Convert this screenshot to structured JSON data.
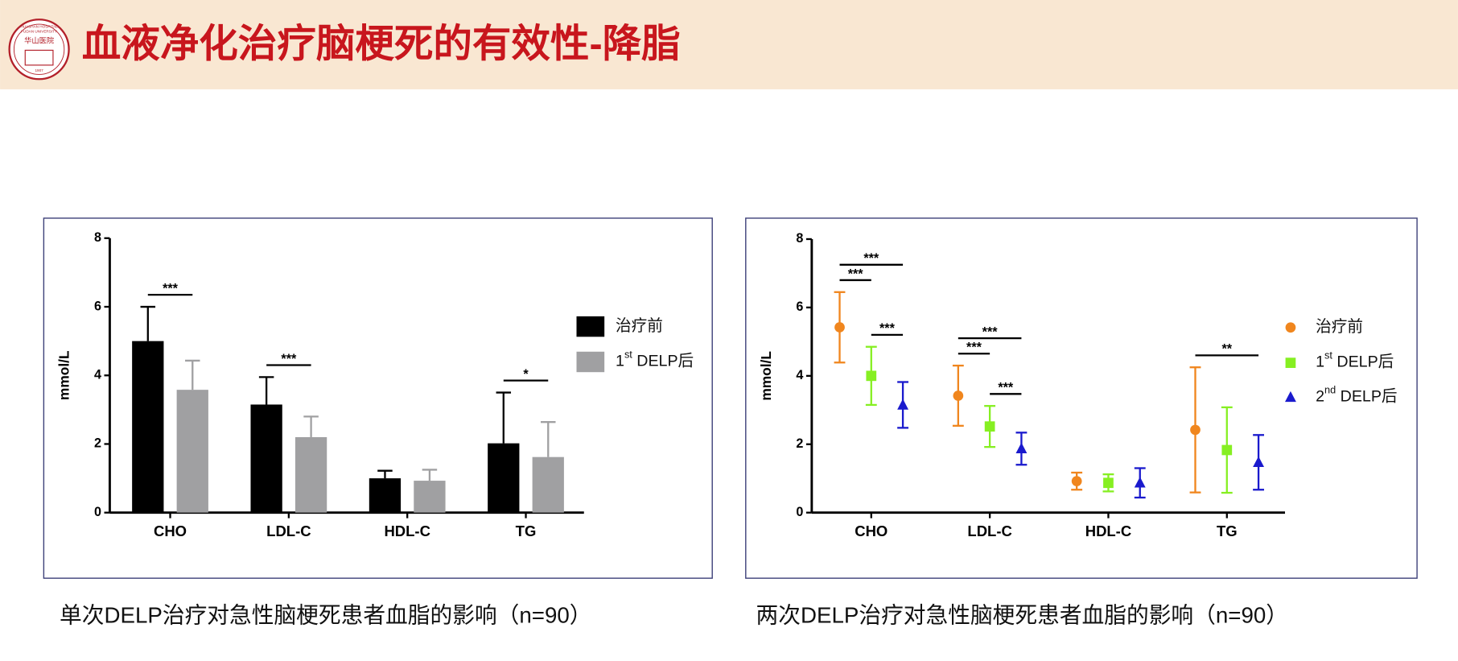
{
  "header": {
    "title": "血液净化治疗脑梗死的有效性-降脂",
    "logo": {
      "name_en": "HUASHAN HOSPITAL",
      "university": "FUDAN UNIVERSITY",
      "name_cn": "华山医院",
      "year": "1907"
    }
  },
  "chart_data": [
    {
      "type": "bar",
      "caption": "单次DELP治疗对急性脑梗死患者血脂的影响（n=90）",
      "ylabel": "mmol/L",
      "categories": [
        "CHO",
        "LDL-C",
        "HDL-C",
        "TG"
      ],
      "ylim": [
        0,
        8
      ],
      "yticks": [
        0,
        2,
        4,
        6,
        8
      ],
      "legend": "right",
      "series": [
        {
          "name": "治疗前",
          "color": "#000000",
          "values": [
            5.0,
            3.15,
            1.0,
            2.02
          ],
          "errors": [
            1.0,
            0.8,
            0.22,
            1.48
          ]
        },
        {
          "name": "1st DELP后",
          "color": "#a0a0a2",
          "values": [
            3.58,
            2.2,
            0.93,
            1.62
          ],
          "errors": [
            0.85,
            0.6,
            0.32,
            1.02
          ]
        }
      ],
      "annotations": [
        {
          "text": "***",
          "category": "CHO",
          "between": [
            "治疗前",
            "1st DELP后"
          ]
        },
        {
          "text": "***",
          "category": "LDL-C",
          "between": [
            "治疗前",
            "1st DELP后"
          ]
        },
        {
          "text": "*",
          "category": "TG",
          "between": [
            "治疗前",
            "1st DELP后"
          ]
        }
      ]
    },
    {
      "type": "errorbar",
      "caption": "两次DELP治疗对急性脑梗死患者血脂的影响（n=90）",
      "ylabel": "mmol/L",
      "categories": [
        "CHO",
        "LDL-C",
        "HDL-C",
        "TG"
      ],
      "ylim": [
        0,
        8
      ],
      "yticks": [
        0,
        2,
        4,
        6,
        8
      ],
      "legend": "right",
      "series": [
        {
          "name": "治疗前",
          "color": "#f0861e",
          "marker": "circle",
          "values": [
            5.42,
            3.42,
            0.92,
            2.42
          ],
          "errors": [
            1.03,
            0.88,
            0.25,
            1.83
          ]
        },
        {
          "name": "1st DELP后",
          "color": "#86ef22",
          "marker": "square",
          "values": [
            4.0,
            2.52,
            0.87,
            1.83
          ],
          "errors": [
            0.85,
            0.6,
            0.25,
            1.25
          ]
        },
        {
          "name": "2nd DELP后",
          "color": "#1a1acd",
          "marker": "triangle",
          "values": [
            3.15,
            1.87,
            0.87,
            1.47
          ],
          "errors": [
            0.67,
            0.47,
            0.43,
            0.8
          ]
        }
      ],
      "annotations": [
        {
          "text": "***",
          "category": "CHO",
          "between": [
            "治疗前",
            "1st DELP后"
          ]
        },
        {
          "text": "***",
          "category": "CHO",
          "between": [
            "治疗前",
            "2nd DELP后"
          ]
        },
        {
          "text": "***",
          "category": "CHO",
          "between": [
            "1st DELP后",
            "2nd DELP后"
          ]
        },
        {
          "text": "***",
          "category": "LDL-C",
          "between": [
            "治疗前",
            "1st DELP后"
          ]
        },
        {
          "text": "***",
          "category": "LDL-C",
          "between": [
            "治疗前",
            "2nd DELP后"
          ]
        },
        {
          "text": "***",
          "category": "LDL-C",
          "between": [
            "1st DELP后",
            "2nd DELP后"
          ]
        },
        {
          "text": "**",
          "category": "TG",
          "between": [
            "治疗前",
            "2nd DELP后"
          ]
        }
      ]
    }
  ]
}
